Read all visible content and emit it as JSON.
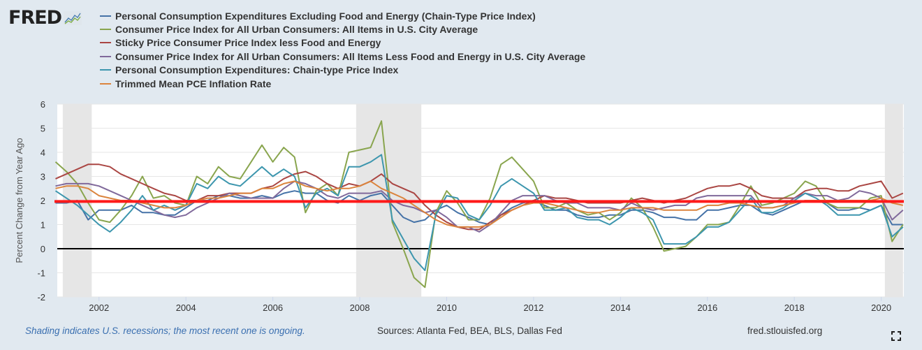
{
  "logo": {
    "text": "FRED"
  },
  "footer": {
    "note": "Shading indicates U.S. recessions; the most recent one is ongoing.",
    "sources": "Sources: Atlanta Fed, BEA, BLS, Dallas Fed",
    "url": "fred.stlouisfed.org"
  },
  "icons": {
    "fullscreen": "fullscreen-icon",
    "logo": "fred-chart-icon"
  },
  "chart_data": {
    "type": "line",
    "xlabel": "",
    "ylabel": "Percent Change from Year Ago",
    "ylim": [
      -2,
      6
    ],
    "yticks": [
      "-2",
      "-1",
      "0",
      "1",
      "2",
      "3",
      "4",
      "5",
      "6"
    ],
    "xlim": [
      "2001-01",
      "2020-07"
    ],
    "xticks": [
      "2002",
      "2004",
      "2006",
      "2008",
      "2010",
      "2012",
      "2014",
      "2016",
      "2018",
      "2020"
    ],
    "grid": true,
    "legend": "top",
    "recessions": [
      [
        "2001-03",
        "2001-11"
      ],
      [
        "2007-12",
        "2009-06"
      ],
      [
        "2020-02",
        "2020-07"
      ]
    ],
    "reference_lines": [
      {
        "y": 2,
        "color": "#ff1a1a"
      },
      {
        "y": 0,
        "color": "#000000"
      }
    ],
    "x": [
      "2001-01",
      "2001-04",
      "2001-07",
      "2001-10",
      "2002-01",
      "2002-04",
      "2002-07",
      "2002-10",
      "2003-01",
      "2003-04",
      "2003-07",
      "2003-10",
      "2004-01",
      "2004-04",
      "2004-07",
      "2004-10",
      "2005-01",
      "2005-04",
      "2005-07",
      "2005-10",
      "2006-01",
      "2006-04",
      "2006-07",
      "2006-10",
      "2007-01",
      "2007-04",
      "2007-07",
      "2007-10",
      "2008-01",
      "2008-04",
      "2008-07",
      "2008-10",
      "2009-01",
      "2009-04",
      "2009-07",
      "2009-10",
      "2010-01",
      "2010-04",
      "2010-07",
      "2010-10",
      "2011-01",
      "2011-04",
      "2011-07",
      "2011-10",
      "2012-01",
      "2012-04",
      "2012-07",
      "2012-10",
      "2013-01",
      "2013-04",
      "2013-07",
      "2013-10",
      "2014-01",
      "2014-04",
      "2014-07",
      "2014-10",
      "2015-01",
      "2015-04",
      "2015-07",
      "2015-10",
      "2016-01",
      "2016-04",
      "2016-07",
      "2016-10",
      "2017-01",
      "2017-04",
      "2017-07",
      "2017-10",
      "2018-01",
      "2018-04",
      "2018-07",
      "2018-10",
      "2019-01",
      "2019-04",
      "2019-07",
      "2019-10",
      "2020-01",
      "2020-04",
      "2020-07"
    ],
    "series": [
      {
        "name": "Personal Consumption Expenditures Excluding Food and Energy (Chain-Type Price Index)",
        "color": "#4572a7",
        "values": [
          1.9,
          1.9,
          2.0,
          1.2,
          1.6,
          1.6,
          1.6,
          1.8,
          1.5,
          1.5,
          1.4,
          1.4,
          1.7,
          2.0,
          2.0,
          2.2,
          2.2,
          2.1,
          2.1,
          2.2,
          2.1,
          2.3,
          2.4,
          2.3,
          2.3,
          2.0,
          1.9,
          2.2,
          2.0,
          2.2,
          2.3,
          1.8,
          1.3,
          1.1,
          1.2,
          1.6,
          1.8,
          1.5,
          1.3,
          1.1,
          1.0,
          1.4,
          1.7,
          1.9,
          2.0,
          1.8,
          1.6,
          1.6,
          1.4,
          1.3,
          1.3,
          1.4,
          1.4,
          1.6,
          1.6,
          1.5,
          1.3,
          1.3,
          1.2,
          1.2,
          1.6,
          1.6,
          1.7,
          1.8,
          1.8,
          1.5,
          1.4,
          1.6,
          1.8,
          2.0,
          2.0,
          1.9,
          1.6,
          1.6,
          1.7,
          1.6,
          1.8,
          1.0,
          1.0
        ]
      },
      {
        "name": "Consumer Price Index for All Urban Consumers: All Items in U.S. City Average",
        "color": "#89a54e",
        "values": [
          3.6,
          3.2,
          2.7,
          1.9,
          1.2,
          1.1,
          1.6,
          2.2,
          3.0,
          2.1,
          2.2,
          1.9,
          1.8,
          3.0,
          2.7,
          3.4,
          3.0,
          2.9,
          3.6,
          4.3,
          3.6,
          4.2,
          3.8,
          1.5,
          2.4,
          2.7,
          2.2,
          4.0,
          4.1,
          4.2,
          5.3,
          1.1,
          0.0,
          -1.2,
          -1.6,
          1.5,
          2.4,
          1.9,
          1.2,
          1.2,
          2.1,
          3.5,
          3.8,
          3.3,
          2.8,
          1.7,
          1.7,
          1.9,
          1.6,
          1.4,
          1.5,
          1.2,
          1.5,
          2.1,
          1.7,
          0.9,
          -0.1,
          0.0,
          0.1,
          0.5,
          1.0,
          1.0,
          1.1,
          1.8,
          2.6,
          1.8,
          1.9,
          2.1,
          2.3,
          2.8,
          2.6,
          1.9,
          1.7,
          1.7,
          1.7,
          2.1,
          2.2,
          0.3,
          1.0
        ]
      },
      {
        "name": "Sticky Price Consumer Price Index less Food and Energy",
        "color": "#aa4643",
        "values": [
          2.9,
          3.1,
          3.3,
          3.5,
          3.5,
          3.4,
          3.1,
          2.9,
          2.7,
          2.5,
          2.3,
          2.2,
          2.0,
          2.0,
          2.2,
          2.2,
          2.3,
          2.3,
          2.3,
          2.5,
          2.6,
          2.9,
          3.1,
          3.2,
          3.0,
          2.7,
          2.5,
          2.7,
          2.6,
          2.8,
          3.1,
          2.7,
          2.5,
          2.3,
          1.8,
          1.4,
          1.1,
          0.9,
          0.8,
          0.8,
          1.1,
          1.4,
          1.6,
          1.8,
          2.0,
          2.2,
          2.1,
          2.1,
          2.0,
          1.9,
          1.9,
          1.9,
          1.9,
          2.0,
          2.1,
          2.0,
          1.9,
          2.0,
          2.1,
          2.3,
          2.5,
          2.6,
          2.6,
          2.7,
          2.5,
          2.2,
          2.1,
          2.1,
          2.1,
          2.4,
          2.5,
          2.5,
          2.4,
          2.4,
          2.6,
          2.7,
          2.8,
          2.1,
          2.3
        ]
      },
      {
        "name": "Consumer Price Index for All Urban Consumers: All Items Less Food and Energy in U.S. City Average",
        "color": "#80699b",
        "values": [
          2.6,
          2.7,
          2.7,
          2.7,
          2.6,
          2.4,
          2.2,
          2.0,
          1.8,
          1.6,
          1.4,
          1.3,
          1.4,
          1.7,
          1.9,
          2.1,
          2.3,
          2.2,
          2.1,
          2.1,
          2.1,
          2.5,
          2.8,
          2.7,
          2.5,
          2.2,
          2.1,
          2.3,
          2.3,
          2.3,
          2.4,
          2.0,
          1.8,
          1.7,
          1.5,
          1.6,
          1.3,
          0.9,
          0.9,
          0.7,
          1.0,
          1.5,
          2.0,
          2.2,
          2.2,
          2.2,
          2.0,
          1.9,
          1.9,
          1.7,
          1.7,
          1.7,
          1.6,
          1.9,
          1.7,
          1.6,
          1.7,
          1.8,
          1.8,
          2.1,
          2.2,
          2.2,
          2.2,
          2.2,
          2.2,
          1.7,
          1.7,
          1.8,
          2.1,
          2.3,
          2.2,
          2.2,
          2.0,
          2.1,
          2.4,
          2.3,
          2.1,
          1.2,
          1.6
        ]
      },
      {
        "name": "Personal Consumption Expenditures: Chain-type Price Index",
        "color": "#3d96ae",
        "values": [
          2.4,
          2.1,
          1.8,
          1.4,
          1.0,
          0.7,
          1.1,
          1.6,
          2.2,
          1.6,
          1.8,
          1.6,
          1.8,
          2.7,
          2.5,
          3.0,
          2.7,
          2.6,
          3.0,
          3.4,
          3.0,
          3.3,
          3.0,
          1.7,
          2.3,
          2.5,
          2.2,
          3.4,
          3.4,
          3.6,
          3.9,
          1.2,
          0.4,
          -0.4,
          -0.9,
          1.4,
          2.2,
          2.1,
          1.4,
          1.2,
          1.8,
          2.6,
          2.9,
          2.6,
          2.3,
          1.6,
          1.6,
          1.7,
          1.3,
          1.2,
          1.2,
          1.0,
          1.3,
          1.7,
          1.5,
          1.2,
          0.2,
          0.2,
          0.2,
          0.5,
          0.9,
          0.9,
          1.1,
          1.6,
          2.1,
          1.5,
          1.5,
          1.7,
          2.0,
          2.3,
          2.1,
          1.8,
          1.4,
          1.4,
          1.4,
          1.6,
          1.8,
          0.5,
          0.9
        ]
      },
      {
        "name": "Trimmed Mean PCE Inflation Rate",
        "color": "#db843d",
        "values": [
          2.5,
          2.6,
          2.6,
          2.5,
          2.2,
          2.1,
          2.0,
          2.0,
          1.9,
          1.8,
          1.7,
          1.7,
          1.8,
          2.0,
          2.1,
          2.1,
          2.2,
          2.3,
          2.3,
          2.5,
          2.5,
          2.7,
          2.8,
          2.6,
          2.5,
          2.4,
          2.5,
          2.5,
          2.6,
          2.8,
          2.5,
          2.3,
          2.1,
          1.8,
          1.5,
          1.2,
          1.0,
          0.9,
          0.9,
          0.9,
          1.0,
          1.3,
          1.6,
          1.8,
          1.9,
          1.9,
          1.8,
          1.7,
          1.6,
          1.5,
          1.5,
          1.6,
          1.6,
          1.7,
          1.7,
          1.7,
          1.6,
          1.6,
          1.6,
          1.6,
          1.8,
          1.8,
          1.9,
          1.9,
          1.8,
          1.7,
          1.7,
          1.8,
          1.9,
          2.0,
          2.0,
          2.0,
          2.0,
          2.0,
          2.0,
          2.0,
          2.1,
          1.9,
          1.8
        ]
      }
    ]
  }
}
